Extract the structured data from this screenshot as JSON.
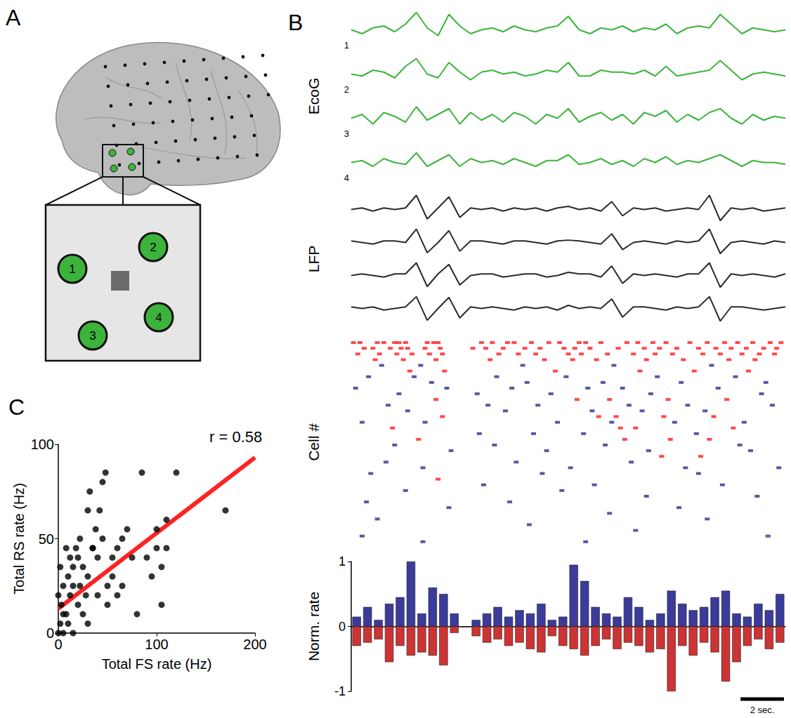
{
  "diagram": {
    "panel_label": "A",
    "inset_labels": [
      "1",
      "2",
      "3",
      "4"
    ]
  },
  "chart_data": [
    {
      "type": "line",
      "panel_label": "B",
      "ylabel": "EcoG",
      "tick_labels": false,
      "xlim": [
        0,
        20
      ],
      "ylim": [
        -1,
        1
      ],
      "x": [
        0,
        0.5,
        1,
        1.5,
        2,
        2.5,
        3,
        3.5,
        4,
        4.5,
        5,
        5.5,
        6,
        6.5,
        7,
        7.5,
        8,
        8.5,
        9,
        9.5,
        10,
        10.5,
        11,
        11.5,
        12,
        12.5,
        13,
        13.5,
        14,
        14.5,
        15,
        15.5,
        16,
        16.5,
        17,
        17.5,
        18,
        18.5,
        19,
        19.5,
        20
      ],
      "series": [
        {
          "name": "1",
          "color": "#3cb43c",
          "values": [
            0,
            -0.2,
            0.1,
            0.2,
            -0.1,
            0.3,
            0.9,
            0.1,
            -0.3,
            0.8,
            0.2,
            -0.2,
            0,
            0.1,
            -0.1,
            0.2,
            0,
            -0.1,
            0.1,
            0.2,
            0.7,
            0,
            -0.2,
            0.1,
            0,
            0.2,
            -0.1,
            0.1,
            0,
            0.3,
            -0.2,
            0.1,
            0.2,
            0.1,
            0.8,
            0.3,
            -0.2,
            0.1,
            0,
            -0.1,
            0
          ]
        },
        {
          "name": "2",
          "color": "#3cb43c",
          "values": [
            0,
            -0.1,
            0.2,
            0.1,
            -0.2,
            0.4,
            0.8,
            0,
            -0.2,
            0.6,
            0.1,
            -0.3,
            0.1,
            0.2,
            0,
            0.1,
            -0.1,
            0,
            0.2,
            0.1,
            0.6,
            -0.1,
            -0.1,
            0.2,
            0.1,
            0.1,
            0,
            0.2,
            -0.1,
            0.4,
            -0.1,
            0,
            0.1,
            0.2,
            0.7,
            0.2,
            -0.3,
            0,
            0.1,
            0,
            -0.1
          ]
        },
        {
          "name": "3",
          "color": "#3cb43c",
          "values": [
            0,
            0.2,
            -0.3,
            0.3,
            0.1,
            -0.2,
            0.6,
            -0.1,
            0.2,
            0.5,
            -0.3,
            0.3,
            -0.1,
            0.2,
            -0.2,
            0.3,
            0.1,
            -0.3,
            0.2,
            0,
            0.5,
            -0.2,
            0.1,
            0.3,
            -0.1,
            0.2,
            -0.3,
            0.3,
            0.1,
            0.4,
            -0.2,
            0.2,
            -0.1,
            0.3,
            0.5,
            0,
            -0.3,
            0.2,
            -0.1,
            0.1,
            0
          ]
        },
        {
          "name": "4",
          "color": "#3cb43c",
          "values": [
            0,
            0.1,
            -0.2,
            0.2,
            0,
            -0.1,
            0.5,
            -0.2,
            0.1,
            0.4,
            -0.2,
            0.2,
            0,
            0.1,
            -0.1,
            0.2,
            0,
            -0.2,
            0.1,
            0.1,
            0.4,
            -0.1,
            0,
            0.2,
            -0.1,
            0.1,
            -0.2,
            0.2,
            0,
            0.3,
            -0.1,
            0.1,
            0,
            0.2,
            0.4,
            0.1,
            -0.2,
            0.1,
            0,
            0,
            -0.1
          ]
        }
      ]
    },
    {
      "type": "line",
      "ylabel": "LFP",
      "tick_labels": false,
      "xlim": [
        0,
        20
      ],
      "ylim": [
        -1,
        1
      ],
      "x": [
        0,
        0.5,
        1,
        1.5,
        2,
        2.5,
        3,
        3.5,
        4,
        4.5,
        5,
        5.5,
        6,
        6.5,
        7,
        7.5,
        8,
        8.5,
        9,
        9.5,
        10,
        10.5,
        11,
        11.5,
        12,
        12.5,
        13,
        13.5,
        14,
        14.5,
        15,
        15.5,
        16,
        16.5,
        17,
        17.5,
        18,
        18.5,
        19,
        19.5,
        20
      ],
      "series": [
        {
          "color": "#2a2a2a",
          "values": [
            0,
            0.1,
            -0.1,
            0.1,
            0,
            0.1,
            0.9,
            -0.6,
            0.1,
            0.8,
            -0.5,
            0.1,
            0,
            0.1,
            -0.1,
            0.1,
            0,
            0.1,
            -0.1,
            0.1,
            0.2,
            0,
            0.1,
            -0.1,
            0.5,
            -0.4,
            0.1,
            0,
            0.1,
            -0.1,
            0,
            0.1,
            0,
            0.9,
            -0.7,
            0.1,
            0,
            0.1,
            -0.1,
            0,
            0.1
          ]
        },
        {
          "color": "#2a2a2a",
          "values": [
            0.1,
            0,
            -0.1,
            0.1,
            0.1,
            0,
            0.85,
            -0.65,
            0,
            0.75,
            -0.55,
            0.1,
            0.1,
            0,
            -0.1,
            0.1,
            0.1,
            0,
            -0.1,
            0.1,
            0.15,
            0.1,
            0,
            -0.1,
            0.55,
            -0.45,
            0,
            0.1,
            0,
            -0.1,
            0.1,
            0,
            0.1,
            0.85,
            -0.7,
            0,
            0.1,
            0,
            -0.1,
            0.1,
            0
          ]
        },
        {
          "color": "#2a2a2a",
          "values": [
            0,
            0.1,
            0,
            -0.1,
            0.1,
            0.1,
            0.8,
            -0.7,
            0.1,
            0.7,
            -0.6,
            0,
            0.1,
            0.1,
            -0.1,
            0,
            0.1,
            0.1,
            -0.1,
            0,
            0.2,
            0.1,
            0.1,
            -0.1,
            0.6,
            -0.5,
            0.1,
            0,
            0.1,
            0,
            -0.1,
            0.1,
            0.1,
            0.8,
            -0.75,
            0.1,
            0,
            0.1,
            0,
            -0.1,
            0.1
          ]
        },
        {
          "color": "#2a2a2a",
          "values": [
            0.1,
            0,
            0.1,
            -0.1,
            0,
            0.1,
            0.75,
            -0.75,
            0,
            0.7,
            -0.6,
            0.1,
            0,
            0.1,
            0,
            -0.1,
            0.1,
            0,
            0.1,
            -0.1,
            0.2,
            0,
            0.1,
            0,
            0.6,
            -0.55,
            0.1,
            0.1,
            0,
            -0.1,
            0.1,
            0,
            0.1,
            0.75,
            -0.8,
            0.1,
            0.1,
            0,
            -0.1,
            0,
            0.1
          ]
        }
      ]
    },
    {
      "type": "raster",
      "ylabel": "Cell #",
      "tick_labels": false,
      "marker": "dash",
      "xlim": [
        0,
        20
      ],
      "ylim": [
        0,
        37
      ],
      "rows": [
        {
          "color": "#ff1a1a",
          "spikes": [
            0.1,
            0.4,
            1.2,
            1.5,
            2.0,
            2.2,
            2.5,
            3.5,
            3.8,
            4.0,
            6.0,
            6.5,
            7.2,
            7.5,
            8.3,
            9.1,
            9.6,
            10.5,
            10.8,
            11.5,
            12.7,
            13.2,
            13.9,
            14.5,
            15.6,
            16.4,
            17.2,
            17.8,
            18.5,
            19.3,
            19.8
          ]
        },
        {
          "color": "#ff1a1a",
          "spikes": [
            0.6,
            1.0,
            1.8,
            2.3,
            2.6,
            3.4,
            4.1,
            5.6,
            6.2,
            7.0,
            8.0,
            8.7,
            9.8,
            10.3,
            11.0,
            12.3,
            13.5,
            14.2,
            15.0,
            16.0,
            16.8,
            17.5,
            18.2,
            19.0,
            19.6
          ]
        },
        {
          "color": "#ff1a1a",
          "spikes": [
            0.3,
            1.3,
            2.1,
            2.8,
            3.6,
            4.2,
            6.8,
            7.7,
            8.5,
            10.0,
            10.6,
            11.8,
            13.0,
            14.0,
            14.8,
            16.2,
            17.0,
            18.0,
            18.8,
            19.5
          ]
        },
        {
          "color": "#ff1a1a",
          "spikes": [
            1.1,
            2.4,
            3.9,
            6.4,
            8.9,
            10.2,
            11.3,
            13.6,
            15.3,
            17.4,
            18.6
          ]
        },
        {
          "color": "#2e2e8f",
          "spikes": [
            1.4,
            3.2,
            7.9,
            12.1,
            16.6
          ]
        },
        {
          "color": "#ff1a1a",
          "spikes": [
            2.7,
            4.3,
            9.4,
            13.3,
            15.8,
            18.3
          ]
        },
        {
          "color": "#2e2e8f",
          "spikes": [
            0.8,
            2.9,
            6.7,
            9.9,
            14.1,
            17.7
          ]
        },
        {
          "color": "#2e2e8f",
          "spikes": [
            3.7,
            8.1,
            11.6,
            15.2,
            19.1
          ]
        },
        {
          "color": "#2e2e8f",
          "spikes": [
            0.2,
            4.4,
            7.4,
            10.9,
            12.5,
            16.9
          ]
        },
        {
          "color": "#2e2e8f",
          "spikes": [
            2.2,
            5.8,
            9.2,
            13.8,
            18.9
          ]
        },
        {
          "color": "#ff1a1a",
          "spikes": [
            3.9,
            10.4,
            11.9,
            14.6,
            17.3
          ]
        },
        {
          "color": "#2e2e8f",
          "spikes": [
            1.7,
            6.3,
            8.6,
            12.8,
            15.5,
            19.4
          ]
        },
        {
          "color": "#2e2e8f",
          "spikes": [
            2.6,
            7.1,
            11.1,
            13.4,
            16.3
          ]
        },
        {
          "color": "#ff1a1a",
          "spikes": [
            4.2,
            11.4,
            12.2,
            14.4,
            16.7
          ]
        },
        {
          "color": "#2e2e8f",
          "spikes": [
            0.5,
            3.4,
            9.5,
            12.0,
            14.9,
            18.1
          ]
        },
        {
          "color": "#ff1a1a",
          "spikes": [
            1.9,
            12.4,
            13.1,
            17.6
          ]
        },
        {
          "color": "#2e2e8f",
          "spikes": [
            5.9,
            8.4,
            10.7,
            15.9
          ]
        },
        {
          "color": "#ff1a1a",
          "spikes": [
            3.1,
            12.6,
            14.7,
            16.5
          ]
        },
        {
          "color": "#2e2e8f",
          "spikes": [
            2.0,
            6.6,
            11.7,
            17.9
          ]
        },
        {
          "color": "#2e2e8f",
          "spikes": [
            4.6,
            9.0,
            13.7,
            18.4
          ]
        },
        {
          "color": "#ff1a1a",
          "spikes": [
            14.3,
            16.1
          ]
        },
        {
          "color": "#2e2e8f",
          "spikes": [
            1.6,
            7.6,
            12.9
          ]
        },
        {
          "color": "#2e2e8f",
          "spikes": [
            3.3,
            10.1,
            15.4,
            19.7
          ]
        },
        {
          "color": "#2e2e8f",
          "spikes": [
            0.9,
            8.8,
            16.0
          ]
        },
        {
          "color": "#ff1a1a",
          "spikes": [
            4.0
          ]
        },
        {
          "color": "#2e2e8f",
          "spikes": [
            6.1,
            11.2,
            17.1
          ]
        },
        {
          "color": "#2e2e8f",
          "spikes": [
            2.5,
            9.7
          ]
        },
        {
          "color": "#2e2e8f",
          "spikes": [
            13.6,
            18.7
          ]
        },
        {
          "color": "#2e2e8f",
          "spikes": [
            0.7,
            7.3
          ]
        },
        {
          "color": "#2e2e8f",
          "spikes": [
            4.5,
            15.1
          ]
        },
        {
          "color": "#2e2e8f",
          "spikes": [
            11.9
          ]
        },
        {
          "color": "#2e2e8f",
          "spikes": [
            1.2,
            16.4
          ]
        },
        {
          "color": "#2e2e8f",
          "spikes": [
            8.2
          ]
        },
        {
          "color": "#2e2e8f",
          "spikes": [
            13.1
          ]
        },
        {
          "color": "#2e2e8f",
          "spikes": [
            0.5,
            19.2
          ]
        },
        {
          "color": "#2e2e8f",
          "spikes": [
            3.3,
            10.8
          ]
        }
      ]
    },
    {
      "type": "bar",
      "ylabel": "Norm. rate",
      "tick_labels": "y",
      "grid": false,
      "xlim": [
        0,
        20
      ],
      "ylim": [
        -1,
        1
      ],
      "yticks": [
        -1,
        0,
        1
      ],
      "bins": [
        0,
        0.5,
        1,
        1.5,
        2,
        2.5,
        3,
        3.5,
        4,
        4.5,
        5,
        5.5,
        6,
        6.5,
        7,
        7.5,
        8,
        8.5,
        9,
        9.5,
        10,
        10.5,
        11,
        11.5,
        12,
        12.5,
        13,
        13.5,
        14,
        14.5,
        15,
        15.5,
        16,
        16.5,
        17,
        17.5,
        18,
        18.5,
        19,
        19.5,
        20
      ],
      "series": [
        {
          "color": "#3b3b9c",
          "values": [
            0.15,
            0.3,
            0.1,
            0.35,
            0.45,
            1,
            0.2,
            0.6,
            0.5,
            0.2,
            0,
            0.1,
            0.2,
            0.3,
            0.15,
            0.25,
            0.2,
            0.35,
            0.1,
            0.15,
            0.95,
            0.7,
            0.3,
            0.2,
            0.15,
            0.45,
            0.3,
            0.1,
            0.2,
            0.55,
            0.35,
            0.25,
            0.3,
            0.45,
            0.55,
            0.2,
            0.15,
            0.35,
            0.25,
            0.5
          ]
        },
        {
          "color": "#cc3333",
          "values": [
            -0.3,
            -0.25,
            -0.2,
            -0.55,
            -0.3,
            -0.45,
            -0.4,
            -0.45,
            -0.6,
            -0.1,
            0,
            -0.15,
            -0.25,
            -0.2,
            -0.3,
            -0.25,
            -0.35,
            -0.4,
            -0.15,
            -0.3,
            -0.35,
            -0.45,
            -0.3,
            -0.2,
            -0.35,
            -0.25,
            -0.3,
            -0.4,
            -0.35,
            -1,
            -0.3,
            -0.45,
            -0.25,
            -0.4,
            -0.85,
            -0.55,
            -0.3,
            -0.2,
            -0.35,
            -0.25
          ]
        }
      ],
      "scale_bar": {
        "value": 2,
        "label": "2 sec."
      }
    },
    {
      "type": "scatter",
      "panel_label": "C",
      "marker": "circle",
      "color": "#000000",
      "grid": false,
      "xlabel": "Total FS rate (Hz)",
      "ylabel": "Total RS rate (Hz)",
      "xlim": [
        0,
        200
      ],
      "ylim": [
        0,
        100
      ],
      "xticks": [
        0,
        100,
        200
      ],
      "yticks": [
        0,
        50,
        100
      ],
      "x": [
        0,
        2,
        5,
        8,
        10,
        3,
        12,
        15,
        5,
        10,
        15,
        20,
        18,
        8,
        2,
        25,
        28,
        22,
        30,
        25,
        35,
        40,
        38,
        42,
        30,
        45,
        48,
        40,
        50,
        55,
        50,
        45,
        55,
        60,
        65,
        70,
        60,
        65,
        75,
        80,
        85,
        90,
        100,
        95,
        100,
        105,
        105,
        110,
        110,
        120,
        170,
        32,
        35,
        20,
        15,
        12,
        5,
        0,
        22,
        30
      ],
      "values": [
        0,
        5,
        0,
        10,
        5,
        15,
        20,
        0,
        25,
        30,
        35,
        40,
        45,
        45,
        35,
        10,
        20,
        25,
        30,
        35,
        45,
        40,
        55,
        65,
        65,
        80,
        85,
        20,
        25,
        30,
        15,
        50,
        40,
        45,
        50,
        55,
        20,
        25,
        40,
        10,
        85,
        40,
        45,
        30,
        55,
        15,
        35,
        45,
        60,
        85,
        65,
        75,
        45,
        15,
        25,
        40,
        10,
        20,
        50,
        5
      ],
      "fit": {
        "type": "line",
        "color": "#ff2222",
        "x": [
          0,
          200
        ],
        "values": [
          13,
          93
        ]
      },
      "annotation": "r = 0.58"
    }
  ]
}
